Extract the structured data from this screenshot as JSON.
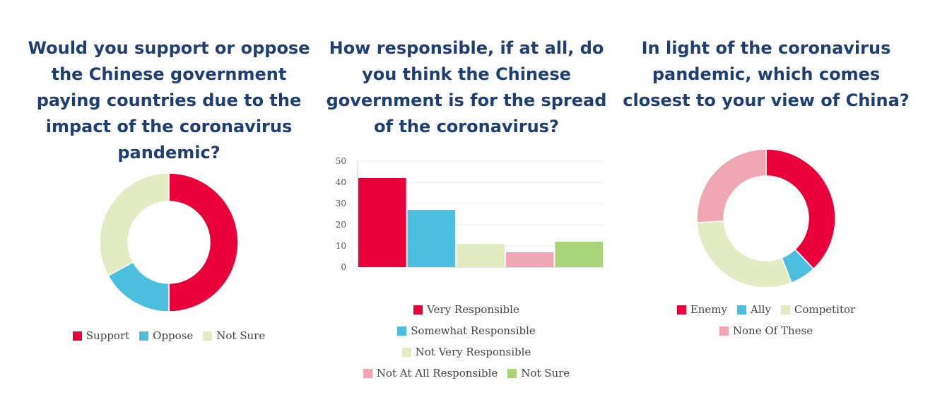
{
  "chart_data": [
    {
      "type": "pie",
      "title": "Would you support or oppose the Chinese government paying countries due to the impact of the coronavirus pandemic?",
      "categories": [
        "Support",
        "Oppose",
        "Not Sure"
      ],
      "values": [
        50,
        17,
        33
      ],
      "colors": [
        "#e9003a",
        "#4cbfde",
        "#e3ebc2"
      ],
      "legend": "bottom"
    },
    {
      "type": "bar",
      "title": "How responsible, if at all, do you think the Chinese government is for the spread of the coronavirus?",
      "categories": [
        "Very Responsible",
        "Somewhat Responsible",
        "Not Very Responsible",
        "Not At All Responsible",
        "Not Sure"
      ],
      "values": [
        42,
        27,
        11,
        7,
        12
      ],
      "colors": [
        "#e9003a",
        "#4cbfde",
        "#e3ebc2",
        "#f0a5b2",
        "#a9d47a"
      ],
      "ylim": [
        0,
        50
      ],
      "yticks": [
        "0",
        "10",
        "20",
        "30",
        "40",
        "50"
      ],
      "grid": true,
      "legend": "bottom"
    },
    {
      "type": "pie",
      "title": "In light of the coronavirus pandemic, which comes closest to your view of China?",
      "categories": [
        "Enemy",
        "Ally",
        "Competitor",
        "None Of These"
      ],
      "values": [
        38,
        6,
        30,
        26
      ],
      "colors": [
        "#e9003a",
        "#4cbfde",
        "#e3ebc2",
        "#f0a5b2"
      ],
      "legend": "bottom"
    }
  ]
}
